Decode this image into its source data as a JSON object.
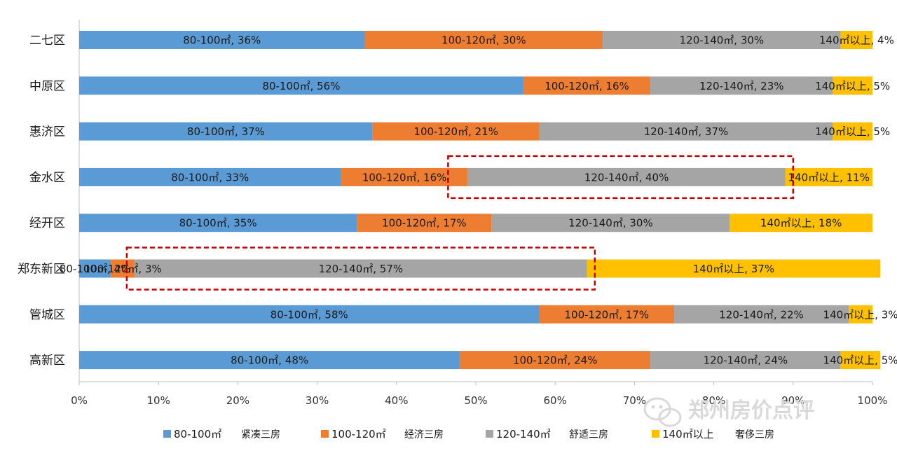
{
  "chart_data": {
    "type": "bar",
    "orientation": "horizontal",
    "stacked": "percent",
    "categories": [
      "二七区",
      "中原区",
      "惠济区",
      "金水区",
      "经开区",
      "郑东新区",
      "管城区",
      "高新区"
    ],
    "series": [
      {
        "key": "s1",
        "name": "80-100㎡",
        "name_note": "紧凑三房",
        "color": "#5b9bd5",
        "values": [
          36,
          56,
          37,
          33,
          35,
          4,
          58,
          48
        ],
        "labels": [
          "80-100㎡, 36%",
          "80-100㎡, 56%",
          "80-100㎡, 37%",
          "80-100㎡, 33%",
          "80-100㎡, 35%",
          "80-100㎡, 4%",
          "80-100㎡, 58%",
          "80-100㎡, 48%"
        ]
      },
      {
        "key": "s2",
        "name": "100-120㎡",
        "name_note": "经济三房",
        "color": "#ed7d31",
        "values": [
          30,
          16,
          21,
          16,
          17,
          3,
          17,
          24
        ],
        "labels": [
          "100-120㎡, 30%",
          "100-120㎡, 16%",
          "100-120㎡, 21%",
          "100-120㎡, 16%",
          "100-120㎡, 17%",
          "100-120㎡, 3%",
          "100-120㎡, 17%",
          "100-120㎡, 24%"
        ]
      },
      {
        "key": "s3",
        "name": "120-140㎡",
        "name_note": "舒适三房",
        "color": "#a5a5a5",
        "values": [
          30,
          23,
          37,
          40,
          30,
          57,
          22,
          24
        ],
        "labels": [
          "120-140㎡, 30%",
          "120-140㎡, 23%",
          "120-140㎡, 37%",
          "120-140㎡, 40%",
          "120-140㎡, 30%",
          "120-140㎡, 57%",
          "120-140㎡, 22%",
          "120-140㎡, 24%"
        ]
      },
      {
        "key": "s4",
        "name": "140㎡以上",
        "name_note": "奢侈三房",
        "color": "#ffc000",
        "values": [
          4,
          5,
          5,
          11,
          18,
          37,
          3,
          5
        ],
        "labels": [
          "140㎡以上, 4%",
          "140㎡以上, 5%",
          "140㎡以上, 5%",
          "140㎡以上, 11%",
          "140㎡以上, 18%",
          "140㎡以上, 37%",
          "140㎡以上, 3%",
          "140㎡以上, 5%"
        ]
      }
    ],
    "xlim": [
      0,
      100
    ],
    "x_ticks": [
      "0%",
      "10%",
      "20%",
      "30%",
      "40%",
      "50%",
      "60%",
      "70%",
      "80%",
      "90%",
      "100%"
    ],
    "legend_position": "bottom",
    "grid": false,
    "annotations": [
      {
        "type": "dashed-box",
        "category": "金水区",
        "from": 46.5,
        "to": 90,
        "color": "#c00000"
      },
      {
        "type": "dashed-box",
        "category": "郑东新区",
        "from": 6,
        "to": 65,
        "color": "#c00000"
      }
    ]
  },
  "watermark": {
    "text": "郑州房价点评",
    "icon": "wechat-icon"
  }
}
